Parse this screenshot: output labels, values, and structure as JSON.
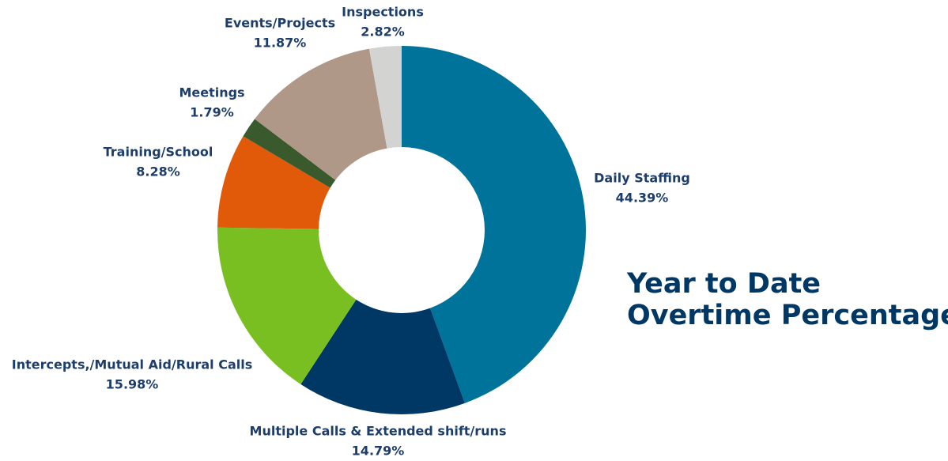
{
  "chart_data": {
    "type": "donut",
    "title": [
      "Year to Date",
      "Overtime Percentage"
    ],
    "categories": [
      "Daily Staffing",
      "Multiple Calls & Extended shift/runs",
      "Intercepts,/Mutual Aid/Rural Calls",
      "Training/School",
      "Meetings",
      "Events/Projects",
      "Inspections"
    ],
    "values": [
      44.39,
      14.79,
      15.98,
      8.28,
      1.79,
      11.87,
      2.82
    ],
    "value_labels": [
      "44.39%",
      "14.79%",
      "15.98%",
      "8.28%",
      "1.79%",
      "11.87%",
      "2.82%"
    ],
    "colors": [
      "#00739a",
      "#003865",
      "#7abf22",
      "#e05a0a",
      "#3a5a2e",
      "#b09888",
      "#d3d3d1"
    ]
  }
}
